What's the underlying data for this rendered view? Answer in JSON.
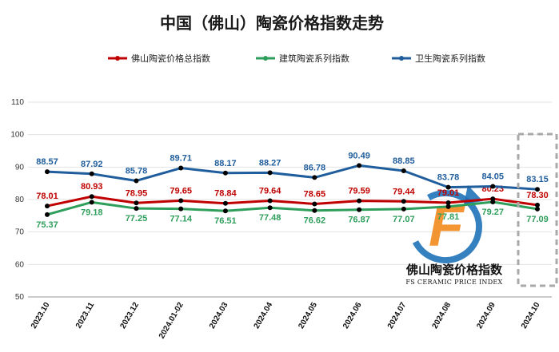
{
  "chart_data": {
    "type": "line",
    "title": "中国（佛山）陶瓷价格指数走势",
    "categories": [
      "2023.10",
      "2023.11",
      "2023.12",
      "2024.01-02",
      "2024.03",
      "2024.04",
      "2024.05",
      "2024.06",
      "2024.07",
      "2024.08",
      "2024.09",
      "2024.10"
    ],
    "series": [
      {
        "name": "佛山陶瓷价格总指数",
        "color": "#c00000",
        "values": [
          78.01,
          80.93,
          78.95,
          79.65,
          78.84,
          79.64,
          78.65,
          79.59,
          79.44,
          79.01,
          80.23,
          78.3
        ],
        "labels": [
          "78.01",
          "80.93",
          "78.95",
          "79.65",
          "78.84",
          "79.64",
          "78.65",
          "79.59",
          "79.44",
          "79.01",
          "80.23",
          "78.30"
        ]
      },
      {
        "name": "建筑陶瓷系列指数",
        "color": "#2e9e5b",
        "values": [
          75.37,
          79.18,
          77.25,
          77.14,
          76.51,
          77.48,
          76.62,
          76.87,
          77.07,
          77.81,
          79.27,
          77.09
        ],
        "labels": [
          "75.37",
          "79.18",
          "77.25",
          "77.14",
          "76.51",
          "77.48",
          "76.62",
          "76.87",
          "77.07",
          "77.81",
          "79.27",
          "77.09"
        ]
      },
      {
        "name": "卫生陶瓷系列指数",
        "color": "#1f5d9c",
        "values": [
          88.57,
          87.92,
          85.78,
          89.71,
          88.17,
          88.27,
          86.78,
          90.49,
          88.85,
          83.78,
          84.05,
          83.15
        ],
        "labels": [
          "88.57",
          "87.92",
          "85.78",
          "89.71",
          "88.17",
          "88.27",
          "86.78",
          "90.49",
          "88.85",
          "83.78",
          "84.05",
          "83.15"
        ]
      }
    ],
    "ylim": [
      50,
      110
    ],
    "yticks": [
      "50",
      "60",
      "70",
      "80",
      "90",
      "100",
      "110"
    ],
    "grid": true,
    "legend_position": "top-center",
    "xlabel": "",
    "ylabel": ""
  },
  "watermark": {
    "logo_letter": "F",
    "name_cn": "佛山陶瓷价格指数",
    "name_en": "FS CERAMIC PRICE INDEX",
    "logo_colors": {
      "orange": "#f28a1e",
      "blue": "#1f72b8"
    }
  },
  "highlight": {
    "color": "#a9a9a9"
  }
}
